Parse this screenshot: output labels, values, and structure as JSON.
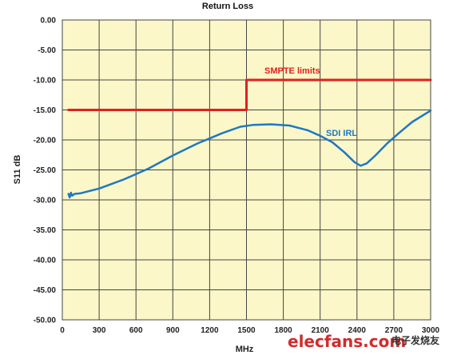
{
  "chart_data": {
    "type": "line",
    "title": "Return Loss",
    "xlabel": "MHz",
    "ylabel": "S11 dB",
    "xlim": [
      0,
      3000
    ],
    "ylim": [
      -50,
      0
    ],
    "x_ticks": [
      0,
      300,
      600,
      900,
      1200,
      1500,
      1800,
      2100,
      2400,
      2700,
      3000
    ],
    "y_ticks": [
      0,
      -5,
      -10,
      -15,
      -20,
      -25,
      -30,
      -35,
      -40,
      -45,
      -50
    ],
    "x_tick_labels": [
      "0",
      "300",
      "600",
      "900",
      "1200",
      "1500",
      "1800",
      "2100",
      "2400",
      "2700",
      "3000"
    ],
    "y_tick_labels": [
      "0.00",
      "-5.00",
      "-10.00",
      "-15.00",
      "-20.00",
      "-25.00",
      "-30.00",
      "-35.00",
      "-40.00",
      "-45.00",
      "-50.00"
    ],
    "grid": true,
    "background_color": "#fbf7c8",
    "series": [
      {
        "name": "SMPTE limits",
        "color": "#e02020",
        "x": [
          50,
          1500,
          1500,
          3000
        ],
        "y": [
          -15,
          -15,
          -10,
          -10
        ]
      },
      {
        "name": "SDI IRL",
        "color": "#1f78c1",
        "x": [
          50,
          60,
          70,
          80,
          100,
          150,
          300,
          500,
          700,
          900,
          1100,
          1300,
          1450,
          1550,
          1700,
          1850,
          2000,
          2100,
          2200,
          2300,
          2380,
          2430,
          2480,
          2550,
          2650,
          2750,
          2850,
          3000
        ],
        "y": [
          -29.0,
          -29.6,
          -28.8,
          -29.3,
          -29.0,
          -28.9,
          -28.1,
          -26.6,
          -24.8,
          -22.6,
          -20.6,
          -18.9,
          -17.8,
          -17.5,
          -17.4,
          -17.6,
          -18.4,
          -19.3,
          -20.4,
          -22.1,
          -23.7,
          -24.3,
          -23.9,
          -22.6,
          -20.5,
          -18.7,
          -17.0,
          -15.1
        ]
      }
    ],
    "annotations": [
      "SMPTE limits",
      "SDI IRL"
    ]
  },
  "watermark": {
    "site": "elecfans.com",
    "cn": "电子发烧友"
  }
}
